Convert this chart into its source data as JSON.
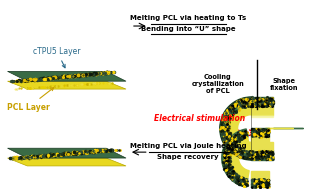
{
  "bg_color": "#ffffff",
  "ctpu5_color_dark": "#2d5a3d",
  "ctpu5_color_speckle": "#1a3a28",
  "pcl_color": "#e8e040",
  "pcl_color_light": "#f0f080",
  "text_label_ctpu5": "cTPU5 Layer",
  "text_label_pcl": "PCL Layer",
  "text_top_right_1": "Melting PCL via heating to Ts",
  "text_top_right_2": "Bending into “U” shape",
  "text_mid_right_1": "Cooling",
  "text_mid_right_2": "crystallization",
  "text_mid_right_3": "of PCL",
  "text_mid_far_right": "Shape\nfixation",
  "text_elec": "Electrical stimulation",
  "text_bot_right_1": "Melting PCL via Joule heating",
  "text_bot_right_2": "Shape recovery",
  "fig_width": 3.13,
  "fig_height": 1.89
}
